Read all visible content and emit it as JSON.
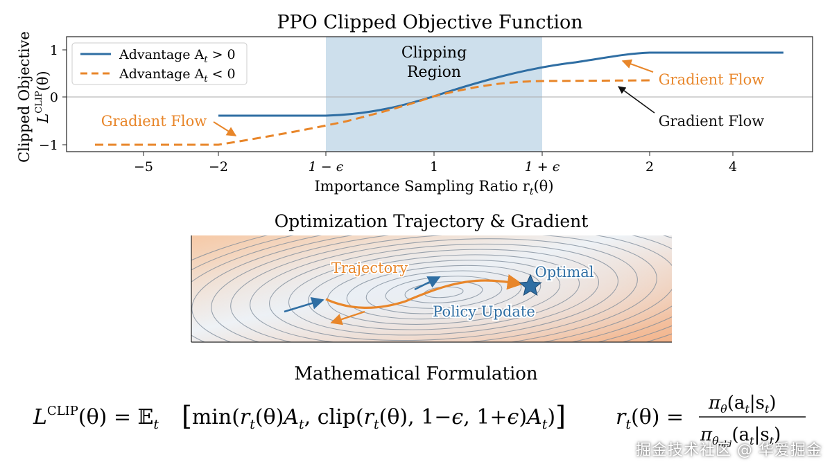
{
  "colors": {
    "blue": "#2f6ea3",
    "orange": "#e8862a",
    "clip_region": "#cddfec",
    "axis": "#222222"
  },
  "chart1": {
    "title": "PPO Clipped Objective Function",
    "ylabel_line1": "Clipped Objective",
    "ylabel_line2": "L",
    "ylabel_sup": "CLIP",
    "ylabel_tail": "(θ)",
    "xlabel": "Importance Sampling Ratio r",
    "xlabel_sub": "t",
    "xlabel_tail": "(θ)",
    "legend": [
      {
        "prefix": "Advantage A",
        "sub": "t",
        "suffix": " > 0"
      },
      {
        "prefix": "Advantage A",
        "sub": "t",
        "suffix": " < 0"
      }
    ],
    "clip_label_1": "Clipping",
    "clip_label_2": "Region",
    "x_ticks": [
      "−5",
      "−2",
      "1 − ϵ",
      "1",
      "1 + ϵ",
      "2",
      "4"
    ],
    "y_ticks": [
      "1",
      "0",
      "−1"
    ],
    "annotations": [
      "Gradient Flow",
      "Gradient Flow",
      "Gradient Flow"
    ]
  },
  "chart2": {
    "title": "Optimization Trajectory & Gradient",
    "labels": {
      "trajectory": "Trajectory",
      "optimal": "Optimal",
      "policy_update": "Policy Update"
    }
  },
  "formula": {
    "heading": "Mathematical Formulation",
    "lhs": "L",
    "lhs_sup": "CLIP",
    "lhs_tail": "(θ) = 𝔼",
    "expectation_sub": "t",
    "body": "min(r",
    "ratio_lhs": "r",
    "ratio_lhs_sub": "t",
    "ratio_lhs_tail": "(θ) =",
    "numerator": "π",
    "numerator_sub": "θ",
    "numerator_tail": "(a",
    "numerator_sub2": "t",
    "numerator_tail2": "|s",
    "numerator_sub3": "t",
    "numerator_end": ")",
    "denominator": "π",
    "denominator_sub": "θ",
    "denominator_sub_old": "old",
    "denominator_tail": "(a",
    "denominator_sub2": "t",
    "denominator_tail2": "|s",
    "denominator_sub3": "t",
    "denominator_end": ")"
  },
  "watermark": "掘金技术社区 @ 华爱掘金"
}
